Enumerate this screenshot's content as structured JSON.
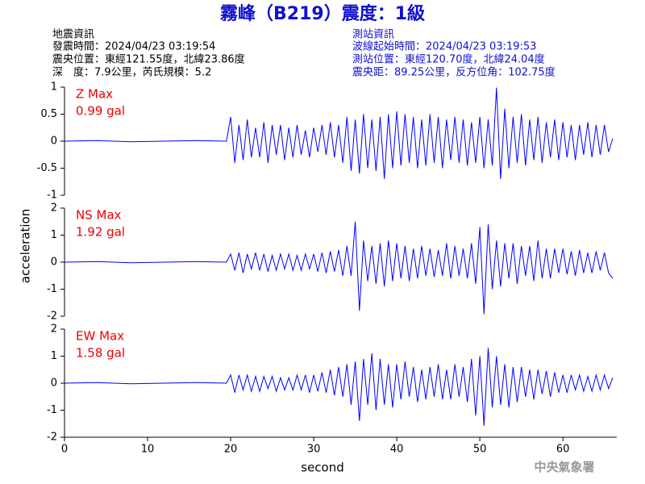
{
  "header": {
    "title": "霧峰（B219）震度：1級",
    "left": [
      "地震資訊",
      "發震時間：2024/04/23 03:19:54",
      "震央位置：東經121.55度，北緯23.86度",
      "深　度：7.9公里，芮氏規模：5.2"
    ],
    "right": [
      "測站資訊",
      "波線起始時間：2024/04/23 03:19:53",
      "測站位置：東經120.70度，北緯24.04度",
      "震央距：89.25公里，反方位角：102.75度"
    ]
  },
  "footer": "中央氣象署",
  "chart_data": [
    {
      "type": "line",
      "annotation": "Z Max",
      "annotation_value": "0.99 gal",
      "color": "#0000ff",
      "xlim": [
        0,
        66
      ],
      "ylim": [
        -1,
        1
      ],
      "yticks": [
        -1,
        -0.5,
        0,
        0.5,
        1
      ],
      "x": [
        0,
        4,
        8,
        12,
        16,
        19.5,
        20,
        20.5,
        21,
        21.5,
        22,
        22.5,
        23,
        23.5,
        24,
        24.5,
        25,
        25.5,
        26,
        26.5,
        27,
        27.5,
        28,
        28.5,
        29,
        29.5,
        30,
        30.5,
        31,
        31.5,
        32,
        32.5,
        33,
        33.5,
        34,
        34.5,
        35,
        35.5,
        36,
        36.5,
        37,
        37.5,
        38,
        38.5,
        39,
        39.5,
        40,
        40.5,
        41,
        41.5,
        42,
        42.5,
        43,
        43.5,
        44,
        44.5,
        45,
        45.5,
        46,
        46.5,
        47,
        47.5,
        48,
        48.5,
        49,
        49.5,
        50,
        50.5,
        51,
        51.5,
        52,
        52.5,
        53,
        53.5,
        54,
        54.5,
        55,
        55.5,
        56,
        56.5,
        57,
        57.5,
        58,
        58.5,
        59,
        59.5,
        60,
        60.5,
        61,
        61.5,
        62,
        62.5,
        63,
        63.5,
        64,
        64.5,
        65,
        65.5,
        66
      ],
      "values": [
        0,
        0.01,
        -0.01,
        0,
        0.01,
        0,
        0.45,
        -0.4,
        0.3,
        -0.35,
        0.4,
        -0.3,
        0.25,
        -0.3,
        0.35,
        -0.4,
        0.3,
        -0.25,
        0.3,
        -0.35,
        0.25,
        -0.3,
        0.3,
        -0.25,
        0.2,
        -0.3,
        0.25,
        -0.2,
        0.3,
        -0.25,
        0.35,
        -0.3,
        0.3,
        -0.4,
        0.45,
        -0.55,
        0.4,
        -0.6,
        0.5,
        -0.5,
        0.4,
        -0.55,
        0.45,
        -0.7,
        0.5,
        -0.5,
        0.55,
        -0.45,
        0.5,
        -0.4,
        0.45,
        -0.5,
        0.4,
        -0.45,
        0.5,
        -0.4,
        0.45,
        -0.5,
        0.4,
        -0.35,
        0.45,
        -0.4,
        0.4,
        -0.45,
        0.35,
        -0.4,
        0.45,
        -0.5,
        0.4,
        -0.45,
        0.99,
        -0.7,
        0.6,
        -0.5,
        0.45,
        -0.4,
        0.5,
        -0.45,
        0.4,
        -0.35,
        0.45,
        -0.4,
        0.35,
        -0.3,
        0.4,
        -0.35,
        0.35,
        -0.3,
        0.3,
        -0.35,
        0.3,
        -0.25,
        0.35,
        -0.3,
        0.3,
        -0.25,
        0.3,
        -0.2,
        0.05
      ]
    },
    {
      "type": "line",
      "annotation": "NS Max",
      "annotation_value": "1.92 gal",
      "color": "#0000ff",
      "ylabel": "acceleration",
      "xlim": [
        0,
        66
      ],
      "ylim": [
        -2,
        2
      ],
      "yticks": [
        -2,
        -1,
        0,
        1,
        2
      ],
      "x": [
        0,
        4,
        8,
        12,
        16,
        19.5,
        20,
        20.5,
        21,
        21.5,
        22,
        22.5,
        23,
        23.5,
        24,
        24.5,
        25,
        25.5,
        26,
        26.5,
        27,
        27.5,
        28,
        28.5,
        29,
        29.5,
        30,
        30.5,
        31,
        31.5,
        32,
        32.5,
        33,
        33.5,
        34,
        34.5,
        35,
        35.5,
        36,
        36.5,
        37,
        37.5,
        38,
        38.5,
        39,
        39.5,
        40,
        40.5,
        41,
        41.5,
        42,
        42.5,
        43,
        43.5,
        44,
        44.5,
        45,
        45.5,
        46,
        46.5,
        47,
        47.5,
        48,
        48.5,
        49,
        49.5,
        50,
        50.5,
        51,
        51.5,
        52,
        52.5,
        53,
        53.5,
        54,
        54.5,
        55,
        55.5,
        56,
        56.5,
        57,
        57.5,
        58,
        58.5,
        59,
        59.5,
        60,
        60.5,
        61,
        61.5,
        62,
        62.5,
        63,
        63.5,
        64,
        64.5,
        65,
        65.5,
        66
      ],
      "values": [
        0,
        0.02,
        -0.02,
        0,
        0.02,
        0,
        0.3,
        -0.3,
        0.35,
        -0.4,
        0.3,
        -0.25,
        0.35,
        -0.3,
        0.3,
        -0.35,
        0.25,
        -0.3,
        0.3,
        -0.25,
        0.3,
        -0.3,
        0.25,
        -0.3,
        0.3,
        -0.25,
        0.3,
        -0.35,
        0.35,
        -0.4,
        0.4,
        -0.35,
        0.45,
        -0.5,
        0.6,
        -0.5,
        1.5,
        -1.8,
        0.8,
        -0.7,
        0.6,
        -0.8,
        0.7,
        -0.9,
        0.8,
        -0.7,
        0.7,
        -0.6,
        0.6,
        -0.7,
        0.5,
        -0.6,
        0.6,
        -0.5,
        0.5,
        -0.55,
        0.45,
        -0.5,
        0.7,
        -0.6,
        0.6,
        -0.5,
        0.5,
        -0.6,
        0.7,
        -0.8,
        1.3,
        -1.92,
        1.4,
        -1.0,
        0.8,
        -0.9,
        0.7,
        -0.6,
        0.7,
        -0.8,
        0.6,
        -0.5,
        0.6,
        -0.7,
        0.8,
        -0.6,
        0.5,
        -0.6,
        0.5,
        -0.4,
        0.5,
        -0.45,
        0.4,
        -0.5,
        0.45,
        -0.4,
        0.35,
        -0.4,
        0.4,
        -0.3,
        0.35,
        -0.4,
        -0.6
      ]
    },
    {
      "type": "line",
      "annotation": "EW Max",
      "annotation_value": "1.58 gal",
      "color": "#0000ff",
      "xlabel": "second",
      "xlim": [
        0,
        66
      ],
      "xticks": [
        0,
        10,
        20,
        30,
        40,
        50,
        60
      ],
      "ylim": [
        -2,
        2
      ],
      "yticks": [
        -2,
        -1,
        0,
        1,
        2
      ],
      "x": [
        0,
        4,
        8,
        12,
        16,
        19.5,
        20,
        20.5,
        21,
        21.5,
        22,
        22.5,
        23,
        23.5,
        24,
        24.5,
        25,
        25.5,
        26,
        26.5,
        27,
        27.5,
        28,
        28.5,
        29,
        29.5,
        30,
        30.5,
        31,
        31.5,
        32,
        32.5,
        33,
        33.5,
        34,
        34.5,
        35,
        35.5,
        36,
        36.5,
        37,
        37.5,
        38,
        38.5,
        39,
        39.5,
        40,
        40.5,
        41,
        41.5,
        42,
        42.5,
        43,
        43.5,
        44,
        44.5,
        45,
        45.5,
        46,
        46.5,
        47,
        47.5,
        48,
        48.5,
        49,
        49.5,
        50,
        50.5,
        51,
        51.5,
        52,
        52.5,
        53,
        53.5,
        54,
        54.5,
        55,
        55.5,
        56,
        56.5,
        57,
        57.5,
        58,
        58.5,
        59,
        59.5,
        60,
        60.5,
        61,
        61.5,
        62,
        62.5,
        63,
        63.5,
        64,
        64.5,
        65,
        65.5,
        66
      ],
      "values": [
        0,
        0.02,
        -0.02,
        0,
        0.02,
        0,
        0.3,
        -0.35,
        0.3,
        -0.25,
        0.3,
        -0.3,
        0.25,
        -0.3,
        0.25,
        -0.2,
        0.25,
        -0.3,
        0.2,
        -0.25,
        0.2,
        -0.25,
        0.3,
        -0.25,
        0.3,
        -0.35,
        0.3,
        -0.3,
        0.4,
        -0.35,
        0.5,
        -0.45,
        0.6,
        -0.5,
        0.7,
        -0.8,
        0.8,
        -1.4,
        0.9,
        -0.8,
        1.1,
        -1.0,
        0.9,
        -0.8,
        0.7,
        -0.9,
        0.7,
        -0.6,
        0.8,
        -0.5,
        0.6,
        -0.7,
        0.5,
        -0.6,
        0.6,
        -0.5,
        0.7,
        -0.6,
        0.5,
        -0.6,
        0.7,
        -0.5,
        0.6,
        -0.7,
        0.9,
        -1.2,
        1.0,
        -1.58,
        1.3,
        -0.9,
        1.0,
        -0.8,
        0.7,
        -0.9,
        0.6,
        -0.7,
        0.6,
        -0.5,
        0.5,
        -0.6,
        0.5,
        -0.4,
        0.45,
        -0.5,
        0.4,
        -0.35,
        0.3,
        -0.35,
        0.3,
        -0.25,
        0.3,
        -0.3,
        0.25,
        -0.3,
        0.3,
        -0.25,
        0.3,
        -0.2,
        0.2
      ]
    }
  ]
}
